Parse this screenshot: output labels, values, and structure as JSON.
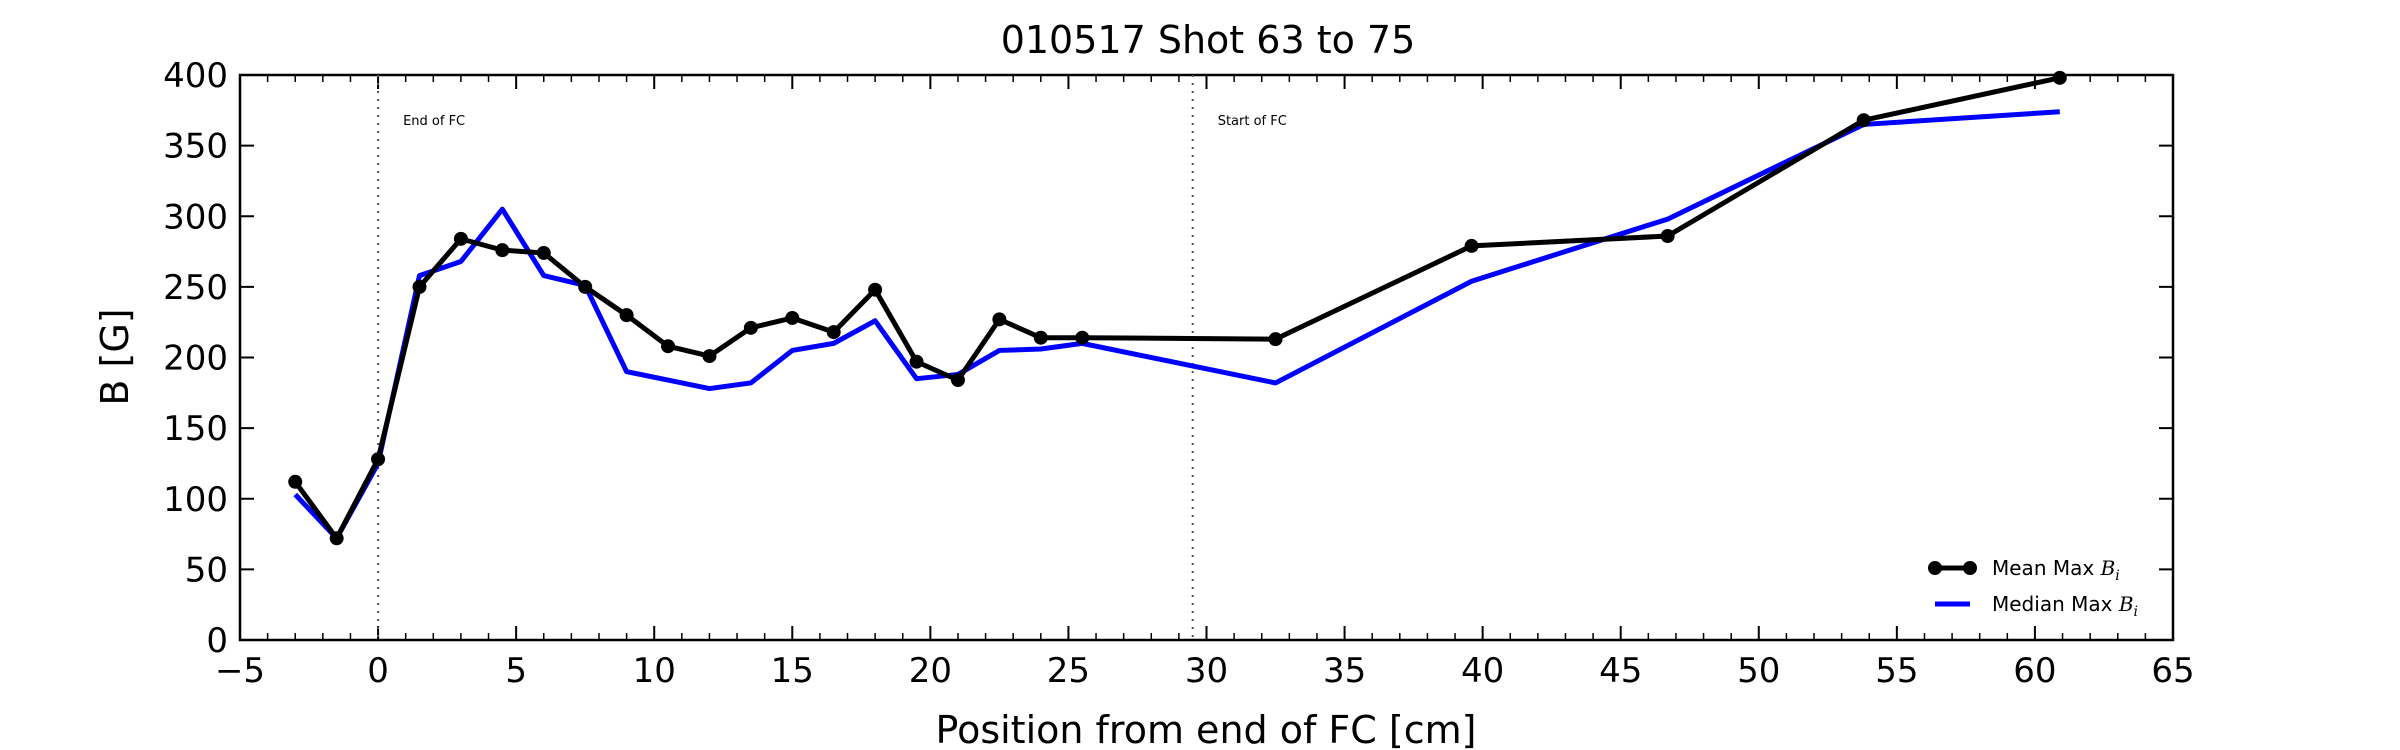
{
  "chart_data": {
    "type": "line",
    "title": "010517 Shot 63 to 75",
    "xlabel": "Position from end of FC [cm]",
    "ylabel": "B [G]",
    "xlim": [
      -5,
      65
    ],
    "ylim": [
      0,
      400
    ],
    "xticks": [
      -5,
      0,
      5,
      10,
      15,
      20,
      25,
      30,
      35,
      40,
      45,
      50,
      55,
      60,
      65
    ],
    "xtick_labels": [
      "−5",
      "0",
      "5",
      "10",
      "15",
      "20",
      "25",
      "30",
      "35",
      "40",
      "45",
      "50",
      "55",
      "60",
      "65"
    ],
    "yticks": [
      0,
      50,
      100,
      150,
      200,
      250,
      300,
      350,
      400
    ],
    "ytick_labels": [
      "0",
      "50",
      "100",
      "150",
      "200",
      "250",
      "300",
      "350",
      "400"
    ],
    "grid": false,
    "legend_position": "lower-right",
    "series": [
      {
        "name": "Mean Max",
        "name_math": "B",
        "name_sub": "i",
        "color": "#000000",
        "marker": "circle",
        "x": [
          -3,
          -1.5,
          0,
          1.5,
          3,
          4.5,
          6,
          7.5,
          9,
          10.5,
          12,
          13.5,
          15,
          16.5,
          18,
          19.5,
          21,
          22.5,
          24,
          25.5,
          32.5,
          39.6,
          46.7,
          53.8,
          60.9
        ],
        "y": [
          112,
          72,
          128,
          250,
          284,
          276,
          274,
          250,
          230,
          208,
          201,
          221,
          228,
          218,
          248,
          197,
          184,
          227,
          214,
          214,
          213,
          279,
          286,
          368,
          398
        ]
      },
      {
        "name": "Median Max",
        "name_math": "B",
        "name_sub": "i",
        "color": "#0000ff",
        "marker": "none",
        "x": [
          -3,
          -1.5,
          0,
          1.5,
          3,
          4.5,
          6,
          7.5,
          9,
          10.5,
          12,
          13.5,
          15,
          16.5,
          18,
          19.5,
          21,
          22.5,
          24,
          25.5,
          32.5,
          39.6,
          46.7,
          53.8,
          60.9
        ],
        "y": [
          103,
          72,
          125,
          258,
          268,
          305,
          258,
          251,
          190,
          184,
          178,
          182,
          205,
          210,
          226,
          185,
          188,
          205,
          206,
          210,
          182,
          254,
          298,
          365,
          374
        ]
      }
    ],
    "vlines": [
      {
        "x": 0,
        "label": "End of FC",
        "style": "dotted",
        "color": "#555555"
      },
      {
        "x": 29.5,
        "label": "Start of FC",
        "style": "dotted",
        "color": "#555555"
      }
    ],
    "annotation_y": 368
  }
}
